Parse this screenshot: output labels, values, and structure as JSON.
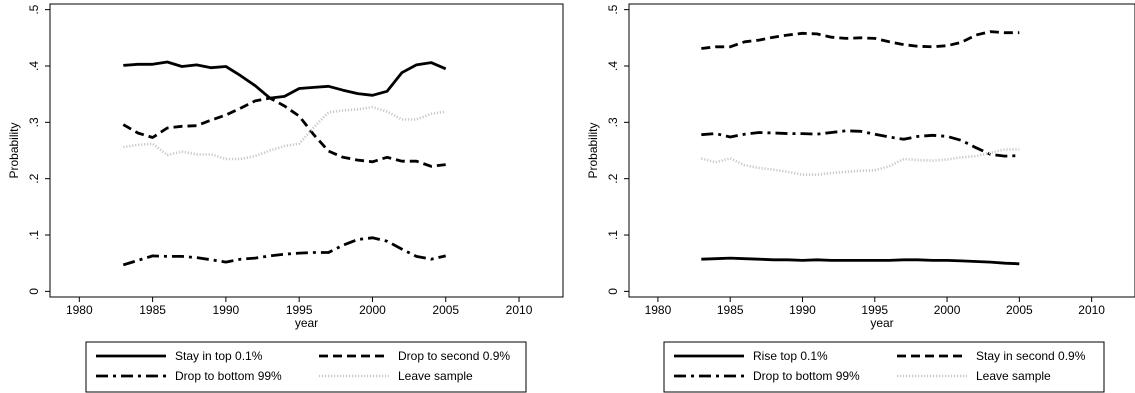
{
  "chart_data": [
    {
      "type": "line",
      "title": "",
      "xlabel": "year",
      "ylabel": "Probability",
      "xlim": [
        1978,
        2013
      ],
      "ylim": [
        -0.01,
        0.51
      ],
      "xticks": [
        1980,
        1985,
        1990,
        1995,
        2000,
        2005,
        2010
      ],
      "yticks": [
        0,
        0.1,
        0.2,
        0.3,
        0.4,
        0.5
      ],
      "ytick_labels": [
        "0",
        ".1",
        ".2",
        ".3",
        ".4",
        ".5"
      ],
      "grid": false,
      "legend_position": "bottom",
      "x": [
        1983,
        1984,
        1985,
        1986,
        1987,
        1988,
        1989,
        1990,
        1991,
        1992,
        1993,
        1994,
        1995,
        1996,
        1997,
        1998,
        1999,
        2000,
        2001,
        2002,
        2003,
        2004,
        2005
      ],
      "series": [
        {
          "name": "Stay in top 0.1%",
          "style": "solid",
          "values": [
            0.401,
            0.403,
            0.403,
            0.407,
            0.399,
            0.402,
            0.397,
            0.399,
            0.383,
            0.365,
            0.343,
            0.346,
            0.36,
            0.362,
            0.364,
            0.357,
            0.351,
            0.348,
            0.355,
            0.388,
            0.402,
            0.406,
            0.395
          ]
        },
        {
          "name": "Drop to second 0.9%",
          "style": "dash",
          "values": [
            0.296,
            0.281,
            0.273,
            0.29,
            0.293,
            0.294,
            0.304,
            0.313,
            0.325,
            0.338,
            0.343,
            0.329,
            0.311,
            0.278,
            0.249,
            0.238,
            0.233,
            0.23,
            0.238,
            0.231,
            0.231,
            0.222,
            0.225
          ]
        },
        {
          "name": "Drop to bottom 99%",
          "style": "dashdot",
          "values": [
            0.047,
            0.055,
            0.063,
            0.062,
            0.062,
            0.06,
            0.056,
            0.052,
            0.057,
            0.059,
            0.063,
            0.066,
            0.068,
            0.069,
            0.069,
            0.082,
            0.092,
            0.095,
            0.089,
            0.075,
            0.062,
            0.057,
            0.063
          ]
        },
        {
          "name": "Leave sample",
          "style": "dotted",
          "values": [
            0.256,
            0.26,
            0.262,
            0.242,
            0.248,
            0.243,
            0.243,
            0.235,
            0.235,
            0.24,
            0.25,
            0.258,
            0.262,
            0.291,
            0.318,
            0.321,
            0.323,
            0.327,
            0.319,
            0.305,
            0.305,
            0.315,
            0.319
          ]
        }
      ]
    },
    {
      "type": "line",
      "title": "",
      "xlabel": "year",
      "ylabel": "Probability",
      "xlim": [
        1978,
        2013
      ],
      "ylim": [
        -0.01,
        0.51
      ],
      "xticks": [
        1980,
        1985,
        1990,
        1995,
        2000,
        2005,
        2010
      ],
      "yticks": [
        0,
        0.1,
        0.2,
        0.3,
        0.4,
        0.5
      ],
      "ytick_labels": [
        "0",
        ".1",
        ".2",
        ".3",
        ".4",
        ".5"
      ],
      "grid": false,
      "legend_position": "bottom",
      "x": [
        1983,
        1984,
        1985,
        1986,
        1987,
        1988,
        1989,
        1990,
        1991,
        1992,
        1993,
        1994,
        1995,
        1996,
        1997,
        1998,
        1999,
        2000,
        2001,
        2002,
        2003,
        2004,
        2005
      ],
      "series": [
        {
          "name": "Rise top 0.1%",
          "style": "solid",
          "values": [
            0.057,
            0.058,
            0.059,
            0.058,
            0.057,
            0.056,
            0.056,
            0.055,
            0.056,
            0.055,
            0.055,
            0.055,
            0.055,
            0.055,
            0.056,
            0.056,
            0.055,
            0.055,
            0.054,
            0.053,
            0.052,
            0.05,
            0.049
          ]
        },
        {
          "name": "Stay in second 0.9%",
          "style": "dash",
          "values": [
            0.431,
            0.434,
            0.434,
            0.443,
            0.446,
            0.451,
            0.455,
            0.458,
            0.457,
            0.451,
            0.449,
            0.45,
            0.449,
            0.443,
            0.438,
            0.435,
            0.434,
            0.436,
            0.442,
            0.455,
            0.461,
            0.459,
            0.459
          ]
        },
        {
          "name": "Drop to bottom 99%",
          "style": "dashdot",
          "values": [
            0.278,
            0.28,
            0.274,
            0.279,
            0.282,
            0.281,
            0.28,
            0.28,
            0.279,
            0.282,
            0.285,
            0.284,
            0.279,
            0.274,
            0.27,
            0.275,
            0.277,
            0.275,
            0.268,
            0.255,
            0.243,
            0.24,
            0.241
          ]
        },
        {
          "name": "Leave sample",
          "style": "dotted",
          "values": [
            0.236,
            0.229,
            0.236,
            0.224,
            0.219,
            0.216,
            0.212,
            0.207,
            0.207,
            0.21,
            0.212,
            0.214,
            0.215,
            0.222,
            0.235,
            0.233,
            0.232,
            0.234,
            0.238,
            0.24,
            0.246,
            0.252,
            0.252
          ]
        }
      ]
    }
  ]
}
